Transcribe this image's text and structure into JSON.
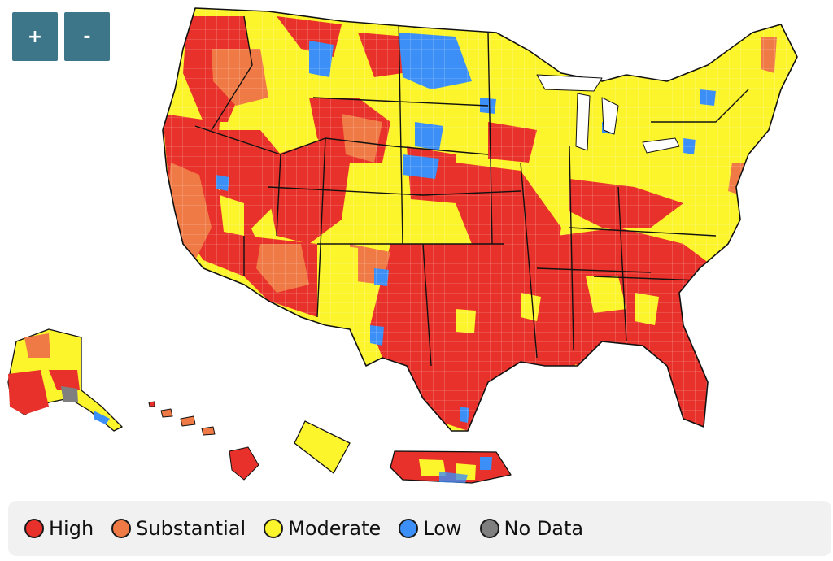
{
  "controls": {
    "zoom_in_label": "+",
    "zoom_out_label": "-"
  },
  "legend": {
    "items": [
      {
        "label": "High",
        "color": "#e8312a"
      },
      {
        "label": "Substantial",
        "color": "#f07a45"
      },
      {
        "label": "Moderate",
        "color": "#fcf52c"
      },
      {
        "label": "Low",
        "color": "#3c8ff6"
      },
      {
        "label": "No Data",
        "color": "#7f7f7f"
      }
    ]
  }
}
